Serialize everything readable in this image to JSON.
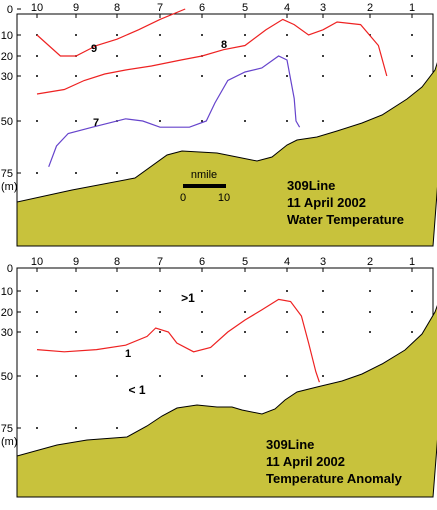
{
  "chart_data": [
    {
      "type": "contour-section",
      "title_lines": [
        "309Line",
        "11 April 2002",
        "Water Temperature"
      ],
      "x_ticks": [
        "10",
        "9",
        "8",
        "7",
        "6",
        "5",
        "4",
        "3",
        "2",
        "1"
      ],
      "y_ticks": [
        "0",
        "10",
        "20",
        "30",
        "50",
        "75",
        "(m)"
      ],
      "scale_bar": {
        "unit": "nmile",
        "min_label": "0",
        "max_label": "10"
      },
      "contours": [
        {
          "label": "9",
          "color": "#ee2222",
          "points": [
            [
              10,
              10
            ],
            [
              9.4,
              20
            ],
            [
              9,
              20
            ],
            [
              8.5,
              15
            ],
            [
              8,
              12
            ],
            [
              7.5,
              8
            ],
            [
              7,
              4
            ],
            [
              6.4,
              0
            ]
          ]
        },
        {
          "label": "8",
          "color": "#ee2222",
          "points": [
            [
              10,
              38
            ],
            [
              9.3,
              36
            ],
            [
              8.8,
              32
            ],
            [
              8.3,
              29
            ],
            [
              7.8,
              27
            ],
            [
              7.2,
              25
            ],
            [
              6.5,
              22
            ],
            [
              6,
              20
            ],
            [
              5.5,
              17
            ],
            [
              5,
              15
            ],
            [
              4.5,
              8
            ],
            [
              4.1,
              4
            ],
            [
              3.8,
              6
            ],
            [
              3.4,
              10
            ],
            [
              3,
              8
            ],
            [
              2.7,
              5
            ],
            [
              2.2,
              6
            ],
            [
              1.8,
              15
            ],
            [
              1.6,
              30
            ]
          ]
        },
        {
          "label": "7",
          "color": "#6644cc",
          "points": [
            [
              9.7,
              72
            ],
            [
              9.5,
              62
            ],
            [
              9.2,
              56
            ],
            [
              8.6,
              53
            ],
            [
              8.2,
              51
            ],
            [
              7.8,
              49
            ],
            [
              7.4,
              50
            ],
            [
              7,
              53
            ],
            [
              6.3,
              53
            ],
            [
              5.9,
              50
            ],
            [
              5.7,
              42
            ],
            [
              5.4,
              32
            ],
            [
              5,
              28
            ],
            [
              4.6,
              26
            ],
            [
              4.2,
              20
            ],
            [
              4.0,
              22
            ],
            [
              3.8,
              40
            ],
            [
              3.75,
              50
            ],
            [
              3.65,
              53
            ]
          ]
        }
      ],
      "data_labels": []
    },
    {
      "type": "contour-section",
      "title_lines": [
        "309Line",
        "11 April 2002",
        "Temperature Anomaly"
      ],
      "x_ticks": [
        "10",
        "9",
        "8",
        "7",
        "6",
        "5",
        "4",
        "3",
        "2",
        "1"
      ],
      "y_ticks": [
        "0",
        "10",
        "20",
        "30",
        "50",
        "75",
        "(m)"
      ],
      "contours": [
        {
          "label": "1",
          "color": "#ee2222",
          "points": [
            [
              10,
              38
            ],
            [
              9.3,
              39
            ],
            [
              8.5,
              38
            ],
            [
              7.8,
              36
            ],
            [
              7.3,
              32
            ],
            [
              7.1,
              28
            ],
            [
              6.8,
              30
            ],
            [
              6.6,
              35
            ],
            [
              6.2,
              39
            ],
            [
              5.8,
              37
            ],
            [
              5.4,
              30
            ],
            [
              5,
              24
            ],
            [
              4.6,
              19
            ],
            [
              4.2,
              14
            ],
            [
              3.9,
              15
            ],
            [
              3.6,
              22
            ],
            [
              3.4,
              35
            ],
            [
              3.2,
              48
            ],
            [
              3.1,
              53
            ]
          ]
        }
      ],
      "data_labels": [
        ">1",
        "< 1"
      ]
    }
  ]
}
